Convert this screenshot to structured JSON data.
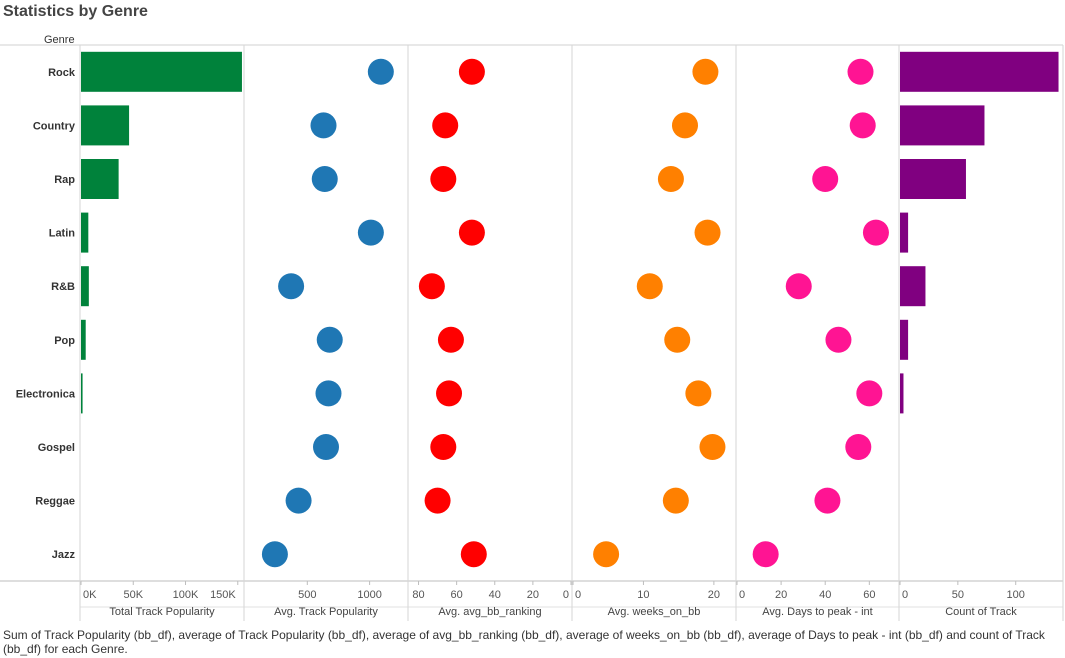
{
  "page": {
    "title": "Statistics by Genre",
    "caption": "Sum of Track Popularity (bb_df), average of Track Popularity (bb_df), average of avg_bb_ranking (bb_df), average of weeks_on_bb (bb_df), average of Days to peak - int (bb_df) and count of Track (bb_df) for each Genre."
  },
  "chart_data": {
    "type": "bar",
    "row_header": "Genre",
    "categories": [
      "Rock",
      "Country",
      "Rap",
      "Latin",
      "R&B",
      "Pop",
      "Electronica",
      "Gospel",
      "Reggae",
      "Jazz"
    ],
    "panels": [
      {
        "key": "sum_pop",
        "label": "Total Track Popularity",
        "mark": "bar",
        "color": "#00823b",
        "domain": [
          0,
          155000
        ],
        "ticks": [
          0,
          50000,
          100000,
          150000
        ],
        "tick_labels": [
          "0K",
          "50K",
          "100K",
          "150K"
        ],
        "reversed": false,
        "values": [
          154000,
          46000,
          36000,
          7000,
          7500,
          4500,
          1500,
          0,
          0,
          0
        ]
      },
      {
        "key": "avg_pop",
        "label": "Avg. Track Popularity",
        "mark": "circle",
        "color": "#1f77b4",
        "domain": [
          0,
          1300
        ],
        "ticks": [
          500,
          1000
        ],
        "tick_labels": [
          "500",
          "1000"
        ],
        "reversed": false,
        "values": [
          1090,
          630,
          640,
          1010,
          370,
          680,
          670,
          650,
          430,
          240
        ]
      },
      {
        "key": "avg_rank",
        "label": "Avg. avg_bb_ranking",
        "mark": "circle",
        "color": "#ff0000",
        "domain": [
          0,
          85
        ],
        "ticks": [
          80,
          60,
          40,
          20,
          0
        ],
        "tick_labels": [
          "80",
          "60",
          "40",
          "20",
          "0"
        ],
        "reversed": true,
        "values": [
          52,
          66,
          67,
          52,
          73,
          63,
          64,
          67,
          70,
          51
        ]
      },
      {
        "key": "avg_weeks",
        "label": "Avg. weeks_on_bb",
        "mark": "circle",
        "color": "#ff8000",
        "domain": [
          0,
          23
        ],
        "ticks": [
          0,
          10,
          20
        ],
        "tick_labels": [
          "0",
          "10",
          "20"
        ],
        "reversed": false,
        "values": [
          18.8,
          15.9,
          13.9,
          19.1,
          10.9,
          14.8,
          17.8,
          19.8,
          14.6,
          4.7
        ]
      },
      {
        "key": "avg_days",
        "label": "Avg. Days to peak - int",
        "mark": "circle",
        "color": "#ff1493",
        "domain": [
          0,
          73
        ],
        "ticks": [
          0,
          20,
          40,
          60
        ],
        "tick_labels": [
          "0",
          "20",
          "40",
          "60"
        ],
        "reversed": false,
        "values": [
          56,
          57,
          40,
          63,
          28,
          46,
          60,
          55,
          41,
          13
        ]
      },
      {
        "key": "count",
        "label": "Count of Track",
        "mark": "bar",
        "color": "#800080",
        "domain": [
          0,
          140
        ],
        "ticks": [
          0,
          50,
          100
        ],
        "tick_labels": [
          "0",
          "50",
          "100"
        ],
        "reversed": false,
        "values": [
          137,
          73,
          57,
          7,
          22,
          7,
          3,
          0,
          0,
          0
        ]
      }
    ]
  }
}
